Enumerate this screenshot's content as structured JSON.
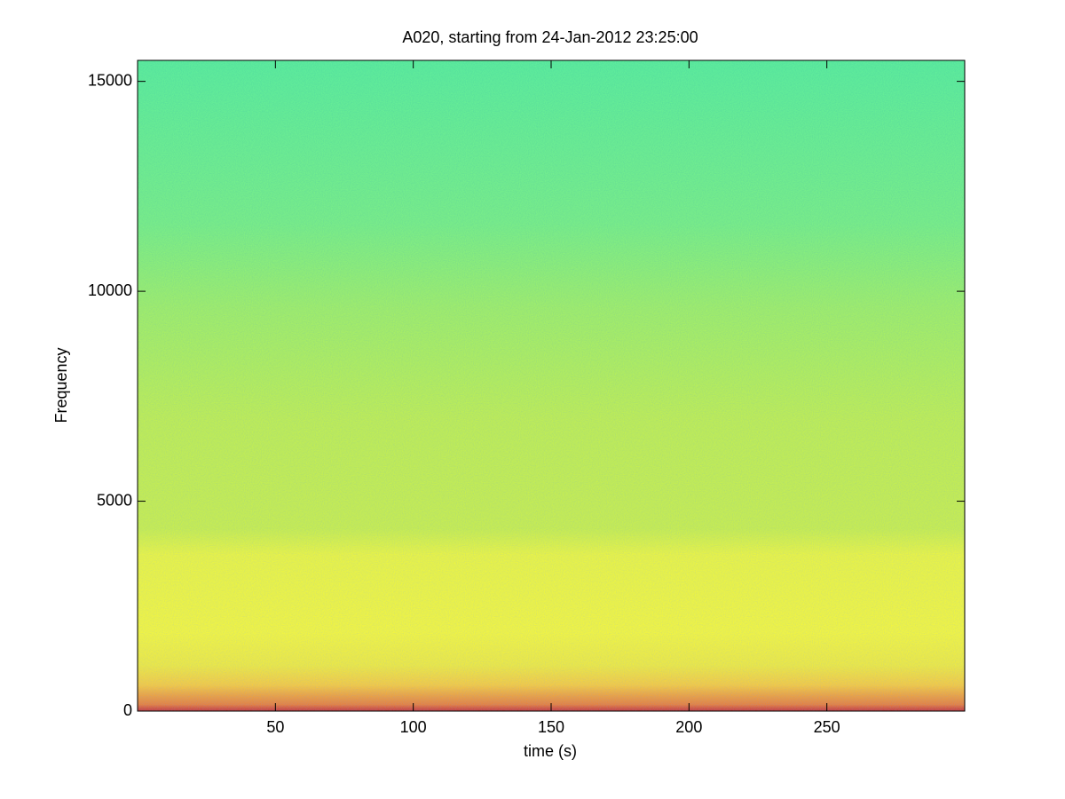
{
  "chart_data": {
    "type": "spectrogram",
    "title": "A020, starting from 24-Jan-2012 23:25:00",
    "x_label": "time (s)",
    "y_label": "Frequency",
    "xlim": [
      0,
      300
    ],
    "xticks": [
      50,
      100,
      150,
      200,
      250
    ],
    "ylim": [
      0,
      15500
    ],
    "yticks": [
      0,
      5000,
      10000,
      15000
    ]
  }
}
